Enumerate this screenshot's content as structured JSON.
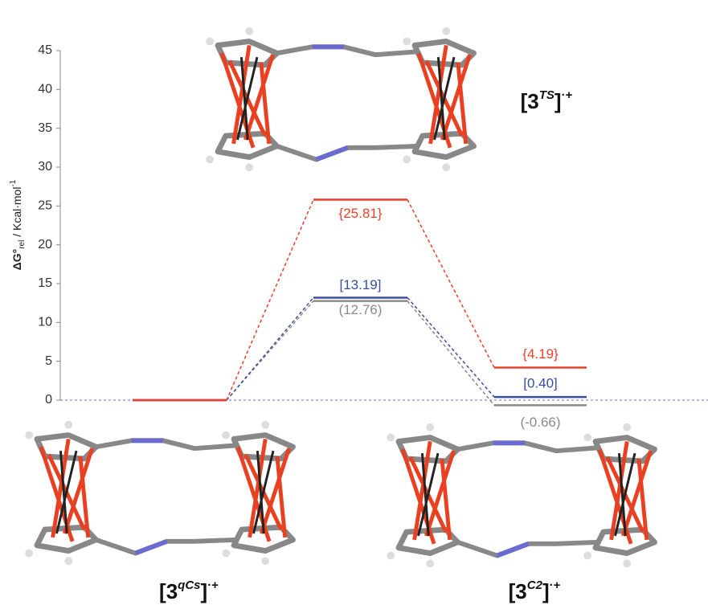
{
  "chart_data": {
    "type": "energy-diagram",
    "y_label": [
      "ΔG°",
      "rel",
      " / Kcal·mol",
      "-1"
    ],
    "categories": [
      [
        "[3",
        "qCs",
        "]",
        "·+"
      ],
      [
        "[3",
        "TS",
        "]",
        "·+"
      ],
      [
        "[3",
        "C2",
        "]",
        "·+"
      ]
    ],
    "series": [
      {
        "color": "#e8402a",
        "values": [
          0,
          25.81,
          4.19
        ],
        "value_labels": [
          null,
          "{25.81}",
          "{4.19}"
        ]
      },
      {
        "color": "#3a4ea0",
        "values": [
          0,
          13.19,
          0.4
        ],
        "value_labels": [
          null,
          "[13.19]",
          "[0.40]"
        ]
      },
      {
        "color": "#8a8a8a",
        "values": [
          0,
          12.76,
          -0.66
        ],
        "value_labels": [
          null,
          "(12.76)",
          "(-0.66)"
        ]
      }
    ],
    "ylim": [
      0,
      45
    ],
    "yticks": [
      0,
      5,
      10,
      15,
      20,
      25,
      30,
      35,
      40,
      45
    ],
    "zero_line": true
  }
}
